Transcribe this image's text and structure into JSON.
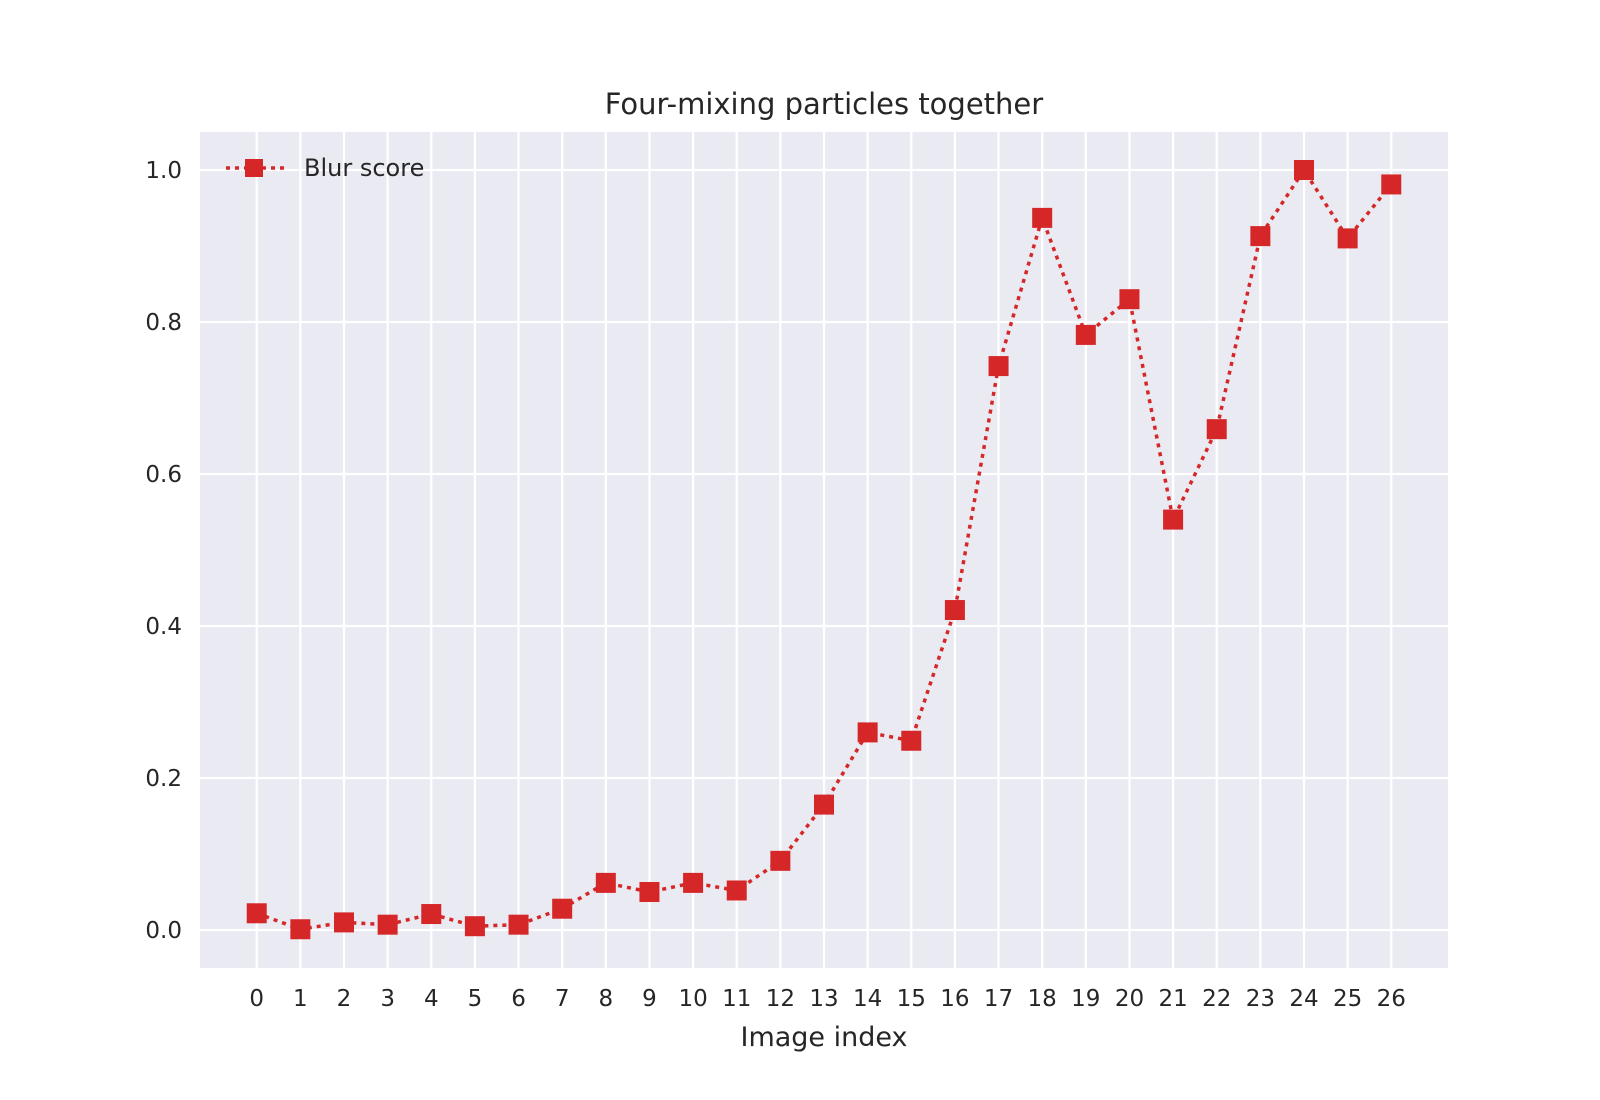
{
  "chart_data": {
    "type": "line",
    "title": "Four-mixing particles together",
    "xlabel": "Image index",
    "ylabel": "",
    "x": [
      0,
      1,
      2,
      3,
      4,
      5,
      6,
      7,
      8,
      9,
      10,
      11,
      12,
      13,
      14,
      15,
      16,
      17,
      18,
      19,
      20,
      21,
      22,
      23,
      24,
      25,
      26
    ],
    "xlim": [
      -1.3,
      27.3
    ],
    "ylim": [
      -0.05,
      1.05
    ],
    "yticks": [
      0.0,
      0.2,
      0.4,
      0.6,
      0.8,
      1.0
    ],
    "ytick_labels": [
      "0.0",
      "0.2",
      "0.4",
      "0.6",
      "0.8",
      "1.0"
    ],
    "grid": true,
    "legend_position": "top-left",
    "series": [
      {
        "name": "Blur score",
        "color": "#d62728",
        "line_style": "dotted",
        "marker": "square",
        "values": [
          0.022,
          0.001,
          0.01,
          0.007,
          0.021,
          0.005,
          0.007,
          0.028,
          0.062,
          0.05,
          0.062,
          0.052,
          0.091,
          0.165,
          0.26,
          0.249,
          0.421,
          0.742,
          0.937,
          0.783,
          0.83,
          0.54,
          0.659,
          0.913,
          1.0,
          0.91,
          0.981
        ]
      }
    ]
  }
}
